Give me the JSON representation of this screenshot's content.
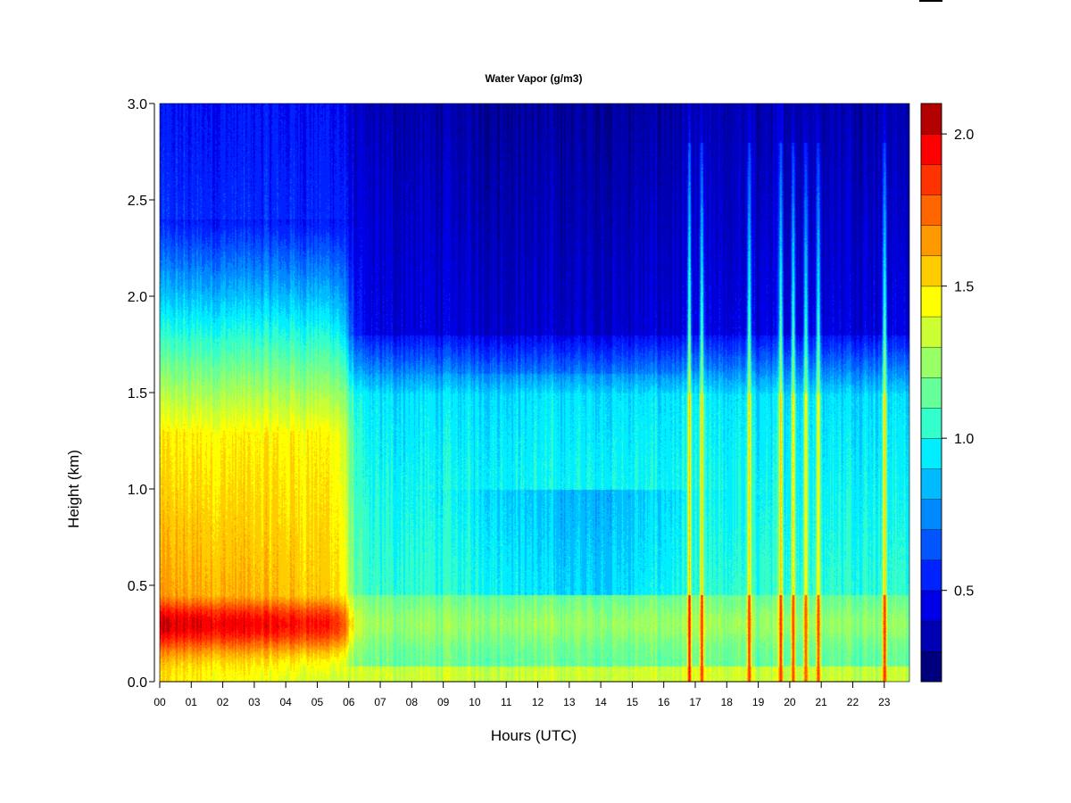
{
  "chart_data": {
    "type": "heatmap",
    "title": "Water Vapor (g/m3)",
    "xlabel": "Hours (UTC)",
    "ylabel": "Height (km)",
    "x_ticks": [
      "00",
      "01",
      "02",
      "03",
      "04",
      "05",
      "06",
      "07",
      "08",
      "09",
      "10",
      "11",
      "12",
      "13",
      "14",
      "15",
      "16",
      "17",
      "18",
      "19",
      "20",
      "21",
      "22",
      "23"
    ],
    "xlim": [
      0,
      23.8
    ],
    "y_ticks": [
      "0.0",
      "0.5",
      "1.0",
      "1.5",
      "2.0",
      "2.5",
      "3.0"
    ],
    "ylim": [
      0,
      3.0
    ],
    "colorbar": {
      "ticks": [
        "0.5",
        "1.0",
        "1.5",
        "2.0"
      ],
      "range": [
        0.2,
        2.1
      ],
      "levels": 19,
      "colors": [
        "#00007f",
        "#0000b3",
        "#0000e6",
        "#0022ff",
        "#0055ff",
        "#0088ff",
        "#00bbff",
        "#00eeff",
        "#33ffcc",
        "#66ff99",
        "#99ff66",
        "#ccff33",
        "#ffff00",
        "#ffcc00",
        "#ff9900",
        "#ff6600",
        "#ff3300",
        "#ff0000",
        "#b30000"
      ]
    },
    "features": {
      "night_moist_layer": {
        "x_range": [
          0,
          5.9
        ],
        "peak_height_km": 0.3,
        "peak_value": 1.9
      },
      "transition_hour": 6.0,
      "daytime_surface_value": 1.2,
      "upper_dry_value": 0.35,
      "moist_plumes_hours": [
        16.8,
        17.2,
        18.7,
        19.7,
        20.1,
        20.5,
        20.9,
        23.0
      ]
    }
  }
}
